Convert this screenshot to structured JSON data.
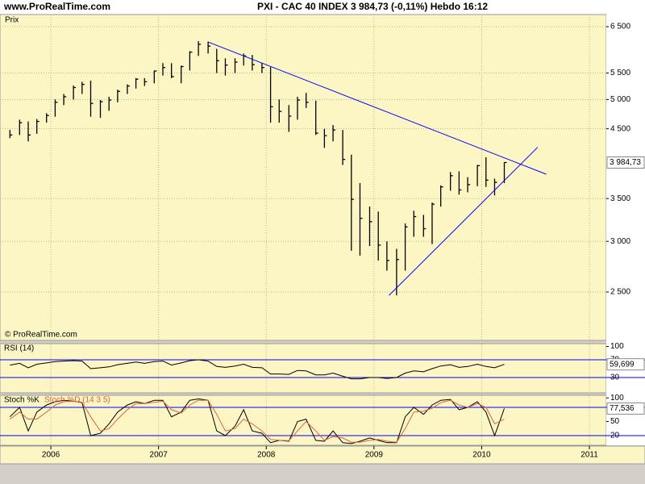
{
  "header": {
    "site": "www.ProRealTime.com"
  },
  "chart_data": [
    {
      "type": "ohlc",
      "title": "PXI - CAC 40 INDEX    3 984,73 (-0,11%)    Hebdo   16:12",
      "label": "Prix",
      "credit": "© ProRealTime.com",
      "x": [
        2005.62,
        2005.71,
        2005.79,
        2005.87,
        2005.96,
        2006.04,
        2006.12,
        2006.21,
        2006.29,
        2006.37,
        2006.46,
        2006.54,
        2006.62,
        2006.71,
        2006.79,
        2006.87,
        2006.96,
        2007.04,
        2007.12,
        2007.21,
        2007.29,
        2007.37,
        2007.46,
        2007.54,
        2007.62,
        2007.71,
        2007.79,
        2007.87,
        2007.96,
        2008.04,
        2008.12,
        2008.21,
        2008.29,
        2008.37,
        2008.46,
        2008.54,
        2008.62,
        2008.71,
        2008.79,
        2008.87,
        2008.96,
        2009.04,
        2009.12,
        2009.21,
        2009.29,
        2009.37,
        2009.46,
        2009.54,
        2009.62,
        2009.71,
        2009.79,
        2009.87,
        2009.96,
        2010.04,
        2010.12,
        2010.21
      ],
      "high": [
        4480,
        4650,
        4620,
        4660,
        4760,
        5000,
        5100,
        5260,
        5330,
        5350,
        4990,
        5050,
        5180,
        5280,
        5400,
        5400,
        5550,
        5700,
        5700,
        5650,
        5950,
        6170,
        6160,
        6000,
        5800,
        5800,
        5900,
        5870,
        5700,
        5620,
        5000,
        4900,
        5050,
        5120,
        4980,
        4500,
        4560,
        4480,
        4100,
        3700,
        3400,
        3340,
        3000,
        2920,
        3200,
        3350,
        3300,
        3450,
        3670,
        3850,
        3860,
        3780,
        3950,
        4060,
        3760,
        3990
      ],
      "low": [
        4350,
        4400,
        4300,
        4420,
        4600,
        4700,
        4900,
        5000,
        5100,
        4700,
        4680,
        4800,
        4950,
        5100,
        5200,
        5250,
        5300,
        5450,
        5400,
        5300,
        5550,
        5850,
        5900,
        5500,
        5450,
        5500,
        5650,
        5550,
        5500,
        4600,
        4600,
        4450,
        4650,
        4850,
        4400,
        4200,
        4300,
        3950,
        2900,
        2850,
        2950,
        2800,
        2700,
        2470,
        2700,
        3050,
        3050,
        2970,
        3400,
        3600,
        3550,
        3580,
        3660,
        3650,
        3540,
        3700
      ],
      "close": [
        4400,
        4600,
        4400,
        4620,
        4720,
        4950,
        5050,
        5220,
        5280,
        4930,
        4960,
        4990,
        5150,
        5250,
        5380,
        5330,
        5540,
        5610,
        5430,
        5630,
        5930,
        6100,
        6060,
        5750,
        5660,
        5720,
        5850,
        5670,
        5610,
        4870,
        4790,
        4710,
        4990,
        4950,
        4430,
        4390,
        4480,
        4030,
        3490,
        3260,
        3220,
        2960,
        2800,
        2810,
        3160,
        3280,
        3140,
        3430,
        3650,
        3800,
        3610,
        3680,
        3940,
        3740,
        3710,
        3984.73
      ],
      "last_label": "3 984,73",
      "color": "#000000",
      "line_color": "#0000ff",
      "trendlines": [
        {
          "x": [
            2007.46,
            2010.6
          ],
          "y": [
            6150,
            3820
          ]
        },
        {
          "x": [
            2009.14,
            2010.52
          ],
          "y": [
            2470,
            4210
          ]
        }
      ],
      "log_scale": true,
      "xlim": [
        2005.528,
        2011.157
      ],
      "xticks": [
        2006,
        2007,
        2008,
        2009,
        2010,
        2011
      ],
      "ylim": [
        2100,
        6790
      ],
      "yticks": [
        {
          "value": 6500,
          "label": "6 500"
        },
        {
          "value": 5500,
          "label": "5 500"
        },
        {
          "value": 5000,
          "label": "5 000"
        },
        {
          "value": 4500,
          "label": "4 500"
        },
        {
          "value": 3500,
          "label": "3 500"
        },
        {
          "value": 3000,
          "label": "3 000"
        },
        {
          "value": 2500,
          "label": "2 500"
        }
      ],
      "grid": true
    },
    {
      "type": "line",
      "label": "RSI (14)",
      "x": [
        2005.62,
        2005.71,
        2005.79,
        2005.87,
        2005.96,
        2006.04,
        2006.12,
        2006.21,
        2006.29,
        2006.37,
        2006.46,
        2006.54,
        2006.62,
        2006.71,
        2006.79,
        2006.87,
        2006.96,
        2007.04,
        2007.12,
        2007.21,
        2007.29,
        2007.37,
        2007.46,
        2007.54,
        2007.62,
        2007.71,
        2007.79,
        2007.87,
        2007.96,
        2008.04,
        2008.12,
        2008.21,
        2008.29,
        2008.37,
        2008.46,
        2008.54,
        2008.62,
        2008.71,
        2008.79,
        2008.87,
        2008.96,
        2009.04,
        2009.12,
        2009.21,
        2009.29,
        2009.37,
        2009.46,
        2009.54,
        2009.62,
        2009.71,
        2009.79,
        2009.87,
        2009.96,
        2010.04,
        2010.12,
        2010.21
      ],
      "series": [
        {
          "color": "#000000",
          "values": [
            58,
            62,
            52,
            60,
            63,
            66,
            67,
            68,
            67,
            50,
            52,
            54,
            59,
            62,
            65,
            62,
            66,
            67,
            58,
            63,
            68,
            70,
            67,
            55,
            53,
            56,
            60,
            53,
            52,
            38,
            38,
            37,
            46,
            45,
            36,
            36,
            40,
            33,
            27,
            27,
            30,
            30,
            28,
            30,
            40,
            45,
            43,
            50,
            56,
            59,
            53,
            55,
            60,
            55,
            52,
            59.699
          ]
        }
      ],
      "last_label": "59,699",
      "xlim": [
        2005.528,
        2011.157
      ],
      "xticks": [
        2006,
        2007,
        2008,
        2009,
        2010,
        2011
      ],
      "ylim": [
        0,
        100
      ],
      "yticks": [
        100,
        70,
        30
      ],
      "levels": [
        70,
        30
      ],
      "level_color": "#0000ff"
    },
    {
      "type": "line",
      "label": "Stoch %K",
      "x": [
        2005.62,
        2005.71,
        2005.79,
        2005.87,
        2005.96,
        2006.04,
        2006.12,
        2006.21,
        2006.29,
        2006.37,
        2006.46,
        2006.54,
        2006.62,
        2006.71,
        2006.79,
        2006.87,
        2006.96,
        2007.04,
        2007.12,
        2007.21,
        2007.29,
        2007.37,
        2007.46,
        2007.54,
        2007.62,
        2007.71,
        2007.79,
        2007.87,
        2007.96,
        2008.04,
        2008.12,
        2008.21,
        2008.29,
        2008.37,
        2008.46,
        2008.54,
        2008.62,
        2008.71,
        2008.79,
        2008.87,
        2008.96,
        2009.04,
        2009.12,
        2009.21,
        2009.29,
        2009.37,
        2009.46,
        2009.54,
        2009.62,
        2009.71,
        2009.79,
        2009.87,
        2009.96,
        2010.04,
        2010.12,
        2010.21
      ],
      "series": [
        {
          "name": "Stoch %K",
          "color": "#000000",
          "values": [
            60,
            80,
            30,
            70,
            85,
            92,
            95,
            93,
            90,
            20,
            25,
            45,
            70,
            85,
            92,
            88,
            95,
            95,
            60,
            70,
            95,
            98,
            95,
            30,
            20,
            40,
            75,
            30,
            25,
            5,
            10,
            8,
            50,
            55,
            10,
            8,
            30,
            5,
            3,
            8,
            15,
            10,
            5,
            5,
            60,
            80,
            65,
            85,
            95,
            97,
            75,
            80,
            92,
            70,
            20,
            77.536
          ]
        },
        {
          "name": "Stoch %D (14 3 5)",
          "color": "#e0603c",
          "values": [
            55,
            70,
            55,
            55,
            70,
            85,
            92,
            93,
            91,
            60,
            30,
            35,
            55,
            75,
            88,
            88,
            91,
            93,
            75,
            68,
            85,
            95,
            95,
            65,
            30,
            35,
            55,
            45,
            30,
            12,
            10,
            9,
            30,
            50,
            30,
            10,
            18,
            15,
            6,
            6,
            10,
            12,
            8,
            6,
            35,
            70,
            72,
            78,
            90,
            95,
            85,
            80,
            88,
            80,
            45,
            55
          ]
        }
      ],
      "last_label": "77,536",
      "xlim": [
        2005.528,
        2011.157
      ],
      "xticks": [
        2006,
        2007,
        2008,
        2009,
        2010,
        2011
      ],
      "ylim": [
        0,
        100
      ],
      "yticks": [
        100,
        80,
        50,
        20
      ],
      "levels": [
        80,
        20
      ],
      "level_color": "#0000ff"
    }
  ]
}
